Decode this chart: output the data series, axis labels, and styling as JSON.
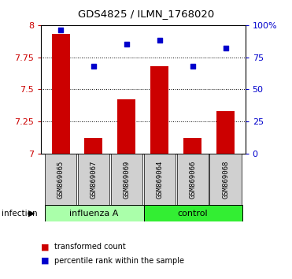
{
  "title": "GDS4825 / ILMN_1768020",
  "samples": [
    "GSM869065",
    "GSM869067",
    "GSM869069",
    "GSM869064",
    "GSM869066",
    "GSM869068"
  ],
  "bar_values": [
    7.93,
    7.12,
    7.42,
    7.68,
    7.12,
    7.33
  ],
  "scatter_values": [
    96,
    68,
    85,
    88,
    68,
    82
  ],
  "group_colors": {
    "influenza A": "#aaffaa",
    "control": "#33ee33"
  },
  "bar_color": "#cc0000",
  "scatter_color": "#0000cc",
  "ylim_left": [
    7.0,
    8.0
  ],
  "ylim_right": [
    0,
    100
  ],
  "yticks_left": [
    7.0,
    7.25,
    7.5,
    7.75,
    8.0
  ],
  "ytick_labels_left": [
    "7",
    "7.25",
    "7.5",
    "7.75",
    "8"
  ],
  "yticks_right": [
    0,
    25,
    50,
    75,
    100
  ],
  "ytick_labels_right": [
    "0",
    "25",
    "50",
    "75",
    "100%"
  ],
  "grid_ticks": [
    7.25,
    7.5,
    7.75
  ],
  "bar_width": 0.55,
  "bar_color_left_axis": "#cc0000",
  "scatter_color_right_axis": "#0000cc",
  "infection_label": "infection",
  "legend_bar_label": "transformed count",
  "legend_scatter_label": "percentile rank within the sample",
  "bg_color": "#ffffff",
  "plot_area_color": "#ffffff",
  "label_box_color": "#d0d0d0",
  "inf_group_color": "#aaffaa",
  "ctrl_group_color": "#33ee33"
}
